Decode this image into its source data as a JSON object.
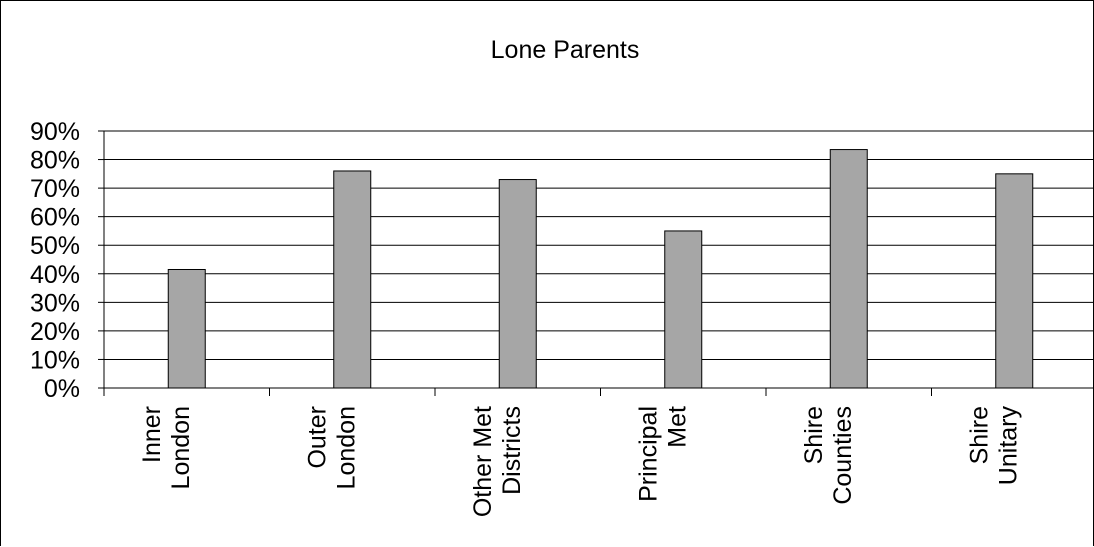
{
  "chart_data": {
    "type": "bar",
    "title": "Lone Parents",
    "categories": [
      [
        "Inner",
        "London"
      ],
      [
        "Outer",
        "London"
      ],
      [
        "Other Met",
        "Districts"
      ],
      [
        "Principal",
        "Met"
      ],
      [
        "Shire",
        "Counties"
      ],
      [
        "Shire",
        "Unitary"
      ]
    ],
    "values": [
      41.5,
      76,
      73,
      55,
      83.5,
      75
    ],
    "ylim": [
      0,
      90
    ],
    "yticks": [
      "0%",
      "10%",
      "20%",
      "30%",
      "40%",
      "50%",
      "60%",
      "70%",
      "80%",
      "90%"
    ],
    "grid": true,
    "bar_color": "#a6a6a6",
    "legend": "none"
  }
}
